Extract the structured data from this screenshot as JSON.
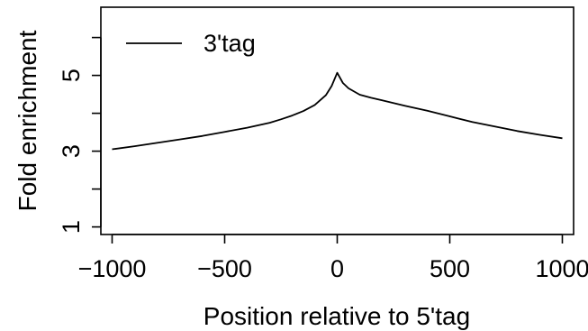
{
  "chart_data": {
    "type": "line",
    "title": "",
    "xlabel": "Position relative to 5'tag",
    "ylabel": "Fold enrichment",
    "xlim": [
      -1050,
      1050
    ],
    "ylim": [
      0.8,
      6.8
    ],
    "x_ticks": [
      {
        "value": -1000,
        "label": "−1000"
      },
      {
        "value": -500,
        "label": "−500"
      },
      {
        "value": 0,
        "label": "0"
      },
      {
        "value": 500,
        "label": "500"
      },
      {
        "value": 1000,
        "label": "1000"
      }
    ],
    "y_ticks": [
      {
        "value": 1,
        "label": "1"
      },
      {
        "value": 2,
        "label": ""
      },
      {
        "value": 3,
        "label": "3"
      },
      {
        "value": 4,
        "label": ""
      },
      {
        "value": 5,
        "label": "5"
      },
      {
        "value": 6,
        "label": ""
      }
    ],
    "grid": false,
    "legend_position": "top-left",
    "series": [
      {
        "name": "3'tag",
        "color": "#000000",
        "x": [
          -1000,
          -900,
          -800,
          -700,
          -600,
          -500,
          -400,
          -300,
          -250,
          -200,
          -150,
          -100,
          -50,
          -25,
          0,
          25,
          50,
          100,
          150,
          200,
          300,
          400,
          500,
          600,
          700,
          800,
          900,
          1000
        ],
        "y": [
          3.05,
          3.13,
          3.22,
          3.31,
          3.4,
          3.51,
          3.62,
          3.75,
          3.84,
          3.94,
          4.06,
          4.22,
          4.48,
          4.72,
          5.07,
          4.8,
          4.66,
          4.49,
          4.41,
          4.34,
          4.2,
          4.07,
          3.92,
          3.77,
          3.65,
          3.53,
          3.43,
          3.34
        ]
      }
    ]
  }
}
